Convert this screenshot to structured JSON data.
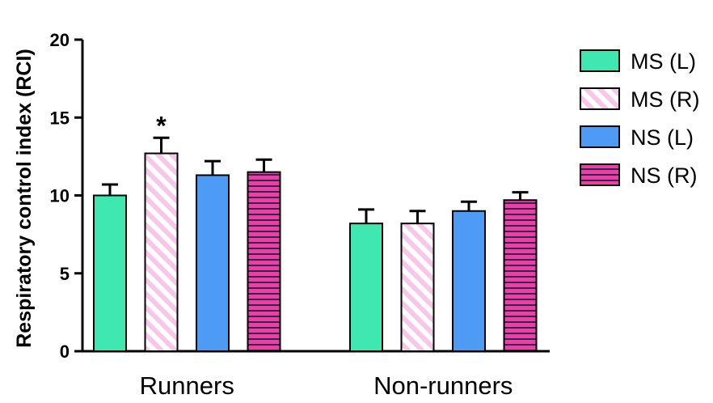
{
  "chart_data": {
    "type": "bar",
    "categories": [
      "Runners",
      "Non-runners"
    ],
    "ylabel": "Respiratory control index (RCI)",
    "xlabel": "",
    "ylim": [
      0,
      20
    ],
    "yticks": [
      0,
      5,
      10,
      15,
      20
    ],
    "grid": false,
    "legend_position": "right",
    "series": [
      {
        "name": "MS (L)",
        "values": [
          10.0,
          8.2
        ],
        "errors": [
          0.7,
          0.9
        ],
        "color": "#3ee8b0",
        "pattern": "solid"
      },
      {
        "name": "MS (R)",
        "values": [
          12.7,
          8.2
        ],
        "errors": [
          1.0,
          0.8
        ],
        "color": "#f7c6e8",
        "pattern": "diagonal"
      },
      {
        "name": "NS (L)",
        "values": [
          11.3,
          9.0
        ],
        "errors": [
          0.9,
          0.6
        ],
        "color": "#4d9bf5",
        "pattern": "solid"
      },
      {
        "name": "NS (R)",
        "values": [
          11.5,
          9.7
        ],
        "errors": [
          0.8,
          0.5
        ],
        "color": "#f23ca8",
        "pattern": "horizontal"
      }
    ],
    "annotations": [
      {
        "text": "*",
        "category": "Runners",
        "series": "MS (R)"
      }
    ]
  }
}
